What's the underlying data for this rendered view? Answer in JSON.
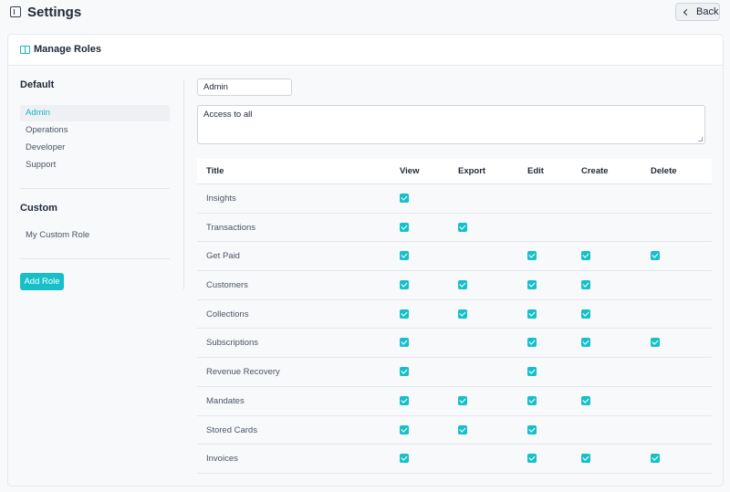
{
  "header": {
    "title": "Settings",
    "back_label": "Back"
  },
  "card": {
    "title": "Manage Roles"
  },
  "roles": {
    "default_title": "Default",
    "default_items": [
      "Admin",
      "Operations",
      "Developer",
      "Support"
    ],
    "selected": "Admin",
    "custom_title": "Custom",
    "custom_items": [
      "My Custom Role"
    ],
    "add_role_label": "Add Role"
  },
  "form": {
    "name_value": "Admin",
    "description_value": "Access to all"
  },
  "permissions": {
    "columns": [
      "Title",
      "View",
      "Export",
      "Edit",
      "Create",
      "Delete"
    ],
    "rows": [
      {
        "title": "Insights",
        "view": true,
        "export": false,
        "edit": false,
        "create": false,
        "delete": false
      },
      {
        "title": "Transactions",
        "view": true,
        "export": true,
        "edit": false,
        "create": false,
        "delete": false
      },
      {
        "title": "Get Paid",
        "view": true,
        "export": false,
        "edit": true,
        "create": true,
        "delete": true
      },
      {
        "title": "Customers",
        "view": true,
        "export": true,
        "edit": true,
        "create": true,
        "delete": false
      },
      {
        "title": "Collections",
        "view": true,
        "export": true,
        "edit": true,
        "create": true,
        "delete": false
      },
      {
        "title": "Subscriptions",
        "view": true,
        "export": false,
        "edit": true,
        "create": true,
        "delete": true
      },
      {
        "title": "Revenue Recovery",
        "view": true,
        "export": false,
        "edit": true,
        "create": false,
        "delete": false
      },
      {
        "title": "Mandates",
        "view": true,
        "export": true,
        "edit": true,
        "create": true,
        "delete": false
      },
      {
        "title": "Stored Cards",
        "view": true,
        "export": true,
        "edit": true,
        "create": false,
        "delete": false
      },
      {
        "title": "Invoices",
        "view": true,
        "export": false,
        "edit": true,
        "create": true,
        "delete": true
      }
    ]
  },
  "colors": {
    "accent": "#17c0c9",
    "background": "#f8f9fb"
  }
}
